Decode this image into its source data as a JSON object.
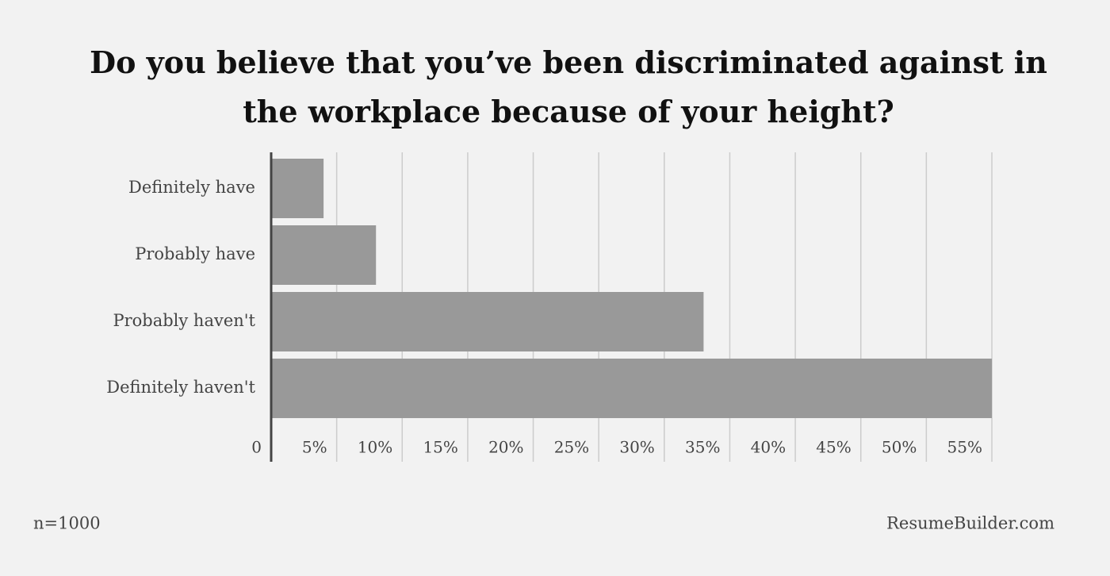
{
  "chart_data": {
    "type": "bar",
    "orientation": "horizontal",
    "title": "Do you believe that you’ve been discriminated against in the workplace because of your height?",
    "categories": [
      "Definitely have",
      "Probably have",
      "Probably haven't",
      "Definitely haven't"
    ],
    "values": [
      4,
      8,
      33,
      55
    ],
    "color": "#999999",
    "xlim": [
      0,
      55
    ],
    "xticks": [
      0,
      {
        "value": 5,
        "label": "5%"
      },
      {
        "value": 10,
        "label": "10%"
      },
      {
        "value": 15,
        "label": "15%"
      },
      {
        "value": 20,
        "label": "20%"
      },
      {
        "value": 25,
        "label": "25%"
      },
      {
        "value": 30,
        "label": "30%"
      },
      {
        "value": 35,
        "label": "35%"
      },
      {
        "value": 40,
        "label": "40%"
      },
      {
        "value": 45,
        "label": "45%"
      },
      {
        "value": 50,
        "label": "50%"
      },
      {
        "value": 55,
        "label": "55%"
      }
    ],
    "grid": true,
    "note": "n=1000",
    "source": "ResumeBuilder.com"
  }
}
